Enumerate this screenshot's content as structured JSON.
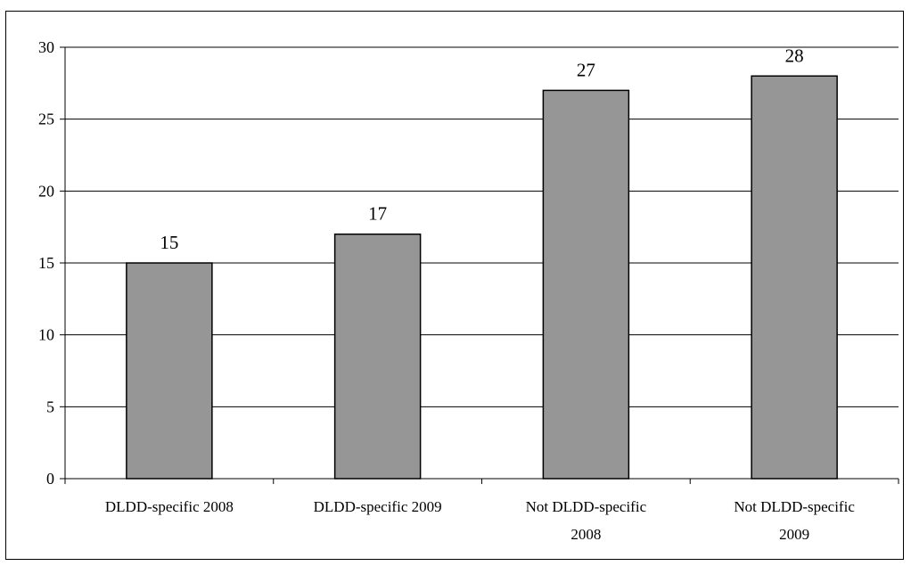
{
  "chart_data": {
    "type": "bar",
    "categories": [
      [
        "DLDD-specific 2008"
      ],
      [
        "DLDD-specific 2009"
      ],
      [
        "Not DLDD-specific",
        "2008"
      ],
      [
        "Not DLDD-specific",
        "2009"
      ]
    ],
    "values": [
      15,
      17,
      27,
      28
    ],
    "data_labels": [
      "15",
      "17",
      "27",
      "28"
    ],
    "title": "",
    "xlabel": "",
    "ylabel": "",
    "ylim": [
      0,
      30
    ],
    "yticks": [
      0,
      5,
      10,
      15,
      20,
      25,
      30
    ],
    "grid": true,
    "legend": "none",
    "colors": {
      "bar_fill": "#969696",
      "bar_stroke": "#000000",
      "grid": "#000000",
      "axis": "#000000"
    }
  }
}
